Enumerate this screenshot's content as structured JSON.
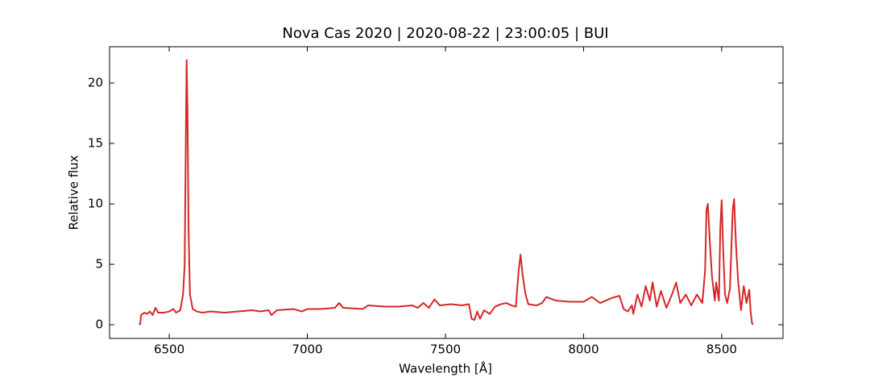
{
  "chart_data": {
    "type": "line",
    "title": "Nova Cas 2020 | 2020-08-22 | 23:00:05 | BUI",
    "x_label": "Wavelength [Å]",
    "y_label": "Relative flux",
    "xlim": [
      6284,
      8722
    ],
    "ylim": [
      -1.13,
      23
    ],
    "xticks": [
      6500,
      7000,
      7500,
      8000,
      8500
    ],
    "yticks": [
      0,
      5,
      10,
      15,
      20
    ],
    "series": [
      {
        "color": "#d62728",
        "x": [
          6390,
          6395,
          6398,
          6410,
          6420,
          6430,
          6440,
          6450,
          6460,
          6480,
          6500,
          6515,
          6525,
          6540,
          6550,
          6556,
          6560,
          6563,
          6566,
          6570,
          6575,
          6585,
          6600,
          6620,
          6650,
          6700,
          6750,
          6800,
          6830,
          6860,
          6870,
          6890,
          6950,
          6980,
          7000,
          7050,
          7100,
          7115,
          7130,
          7200,
          7220,
          7280,
          7330,
          7380,
          7400,
          7420,
          7440,
          7460,
          7480,
          7520,
          7560,
          7585,
          7595,
          7605,
          7615,
          7625,
          7640,
          7660,
          7680,
          7700,
          7720,
          7740,
          7755,
          7765,
          7772,
          7780,
          7790,
          7800,
          7830,
          7850,
          7865,
          7900,
          7950,
          8000,
          8030,
          8060,
          8100,
          8130,
          8145,
          8160,
          8175,
          8180,
          8195,
          8210,
          8225,
          8240,
          8250,
          8265,
          8280,
          8300,
          8320,
          8335,
          8350,
          8370,
          8390,
          8410,
          8430,
          8440,
          8445,
          8450,
          8458,
          8465,
          8475,
          8480,
          8490,
          8495,
          8500,
          8505,
          8512,
          8520,
          8530,
          8540,
          8545,
          8552,
          8560,
          8570,
          8580,
          8590,
          8600,
          8605,
          8610,
          8615
        ],
        "values": [
          0.05,
          0.05,
          0.8,
          1.0,
          0.9,
          1.1,
          0.8,
          1.4,
          1.0,
          1.0,
          1.1,
          1.3,
          1.0,
          1.2,
          2.5,
          5.0,
          15,
          21.9,
          18,
          8,
          2.5,
          1.3,
          1.1,
          1.0,
          1.1,
          1.0,
          1.1,
          1.2,
          1.1,
          1.2,
          0.8,
          1.2,
          1.3,
          1.1,
          1.3,
          1.3,
          1.4,
          1.8,
          1.4,
          1.3,
          1.6,
          1.5,
          1.5,
          1.6,
          1.4,
          1.8,
          1.4,
          2.1,
          1.6,
          1.7,
          1.6,
          1.7,
          0.5,
          0.4,
          1.1,
          0.5,
          1.2,
          0.9,
          1.5,
          1.7,
          1.8,
          1.6,
          1.5,
          4.5,
          5.8,
          4.0,
          2.5,
          1.7,
          1.6,
          1.8,
          2.3,
          2.0,
          1.9,
          1.9,
          2.3,
          1.8,
          2.2,
          2.4,
          1.3,
          1.1,
          1.6,
          0.9,
          2.5,
          1.5,
          3.2,
          2.0,
          3.5,
          1.5,
          2.8,
          1.4,
          2.5,
          3.5,
          1.8,
          2.5,
          1.6,
          2.5,
          1.8,
          4.5,
          9.5,
          10.0,
          6.5,
          4.0,
          2.0,
          3.5,
          2.0,
          8.0,
          10.3,
          6.5,
          2.5,
          1.8,
          3.0,
          9.5,
          10.4,
          6.5,
          3.5,
          1.2,
          3.2,
          1.8,
          2.9,
          1.0,
          0.1,
          0.05
        ]
      }
    ]
  }
}
